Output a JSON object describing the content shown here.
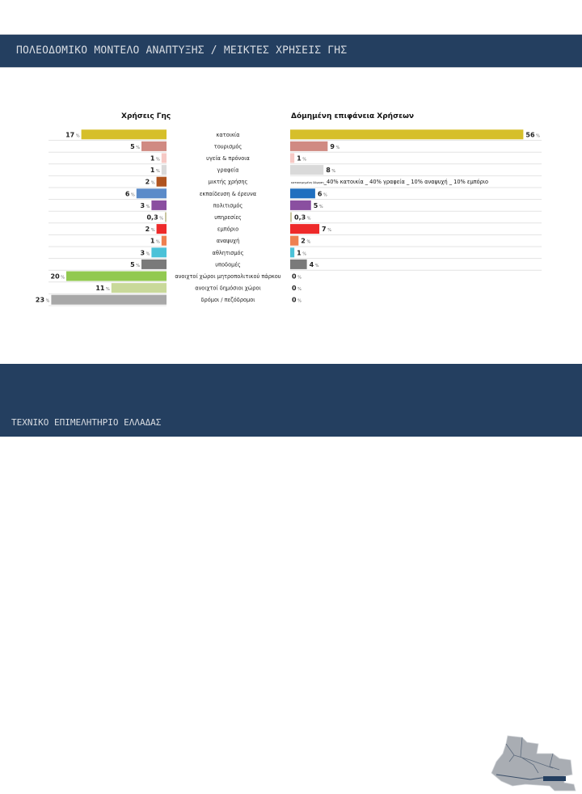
{
  "header": {
    "title": "ΠΟΛΕΟΔΟΜΙΚΟ ΜΟΝΤΕΛΟ ΑΝΑΠΤΥΞΗΣ / ΜΕΙΚΤΕΣ ΧΡΗΣΕΙΣ ΓΗΣ"
  },
  "footer": {
    "title": "ΤΕΧΝΙΚΟ ΕΠΙΜΕΛΗΤΗΡΙΟ ΕΛΛΑΔΑΣ",
    "map_icon": "city-map-outline-icon"
  },
  "chart_data": [
    {
      "type": "bar",
      "orientation": "horizontal",
      "direction": "right-to-left",
      "title": "Χρήσεις Γης",
      "unit": "%",
      "categories": [
        "κατοικία",
        "τουρισμός",
        "υγεία & πρόνοια",
        "γραφεία",
        "μικτής χρήσης",
        "εκπαίδευση & έρευνα",
        "πολιτισμός",
        "υπηρεσίες",
        "εμπόριο",
        "αναψυχή",
        "αθλητισμός",
        "υποδομές",
        "ανοιχτοί χώροι μητροπολιτικού πάρκου",
        "ανοιχτοί δημόσιοι χώροι",
        "δρόμοι / πεζόδρομοι"
      ],
      "values": [
        17,
        5,
        1,
        1,
        2,
        6,
        3,
        0.3,
        2,
        1,
        3,
        5,
        20,
        11,
        23
      ],
      "labels": [
        "17",
        "5",
        "1",
        "1",
        "2",
        "6",
        "3",
        "0,3",
        "2",
        "1",
        "3",
        "5",
        "20",
        "11",
        "23"
      ],
      "colors": [
        "#d6bf2a",
        "#d08a82",
        "#f6c9c5",
        "#d9d9d9",
        "#b0541f",
        "#5b8bc9",
        "#8a4fa0",
        "#c9c5a0",
        "#ee2a2a",
        "#ee8050",
        "#4bc2d8",
        "#7a7a7a",
        "#92c950",
        "#c9d99a",
        "#a8a8a8"
      ]
    },
    {
      "type": "bar",
      "orientation": "horizontal",
      "direction": "left-to-right",
      "title": "Δόμημένη επιφάνεια Χρήσεων",
      "unit": "%",
      "categories": [
        "κατοικία",
        "τουρισμός",
        "υγεία & πρόνοια",
        "γραφεία",
        "μικτής χρήσης",
        "εκπαίδευση & έρευνα",
        "πολιτισμός",
        "υπηρεσίες",
        "εμπόριο",
        "αναψυχή",
        "αθλητισμός",
        "υποδομές",
        "ανοιχτοί χώροι μητροπολιτικού πάρκου",
        "ανοιχτοί δημόσιοι χώροι",
        "δρόμοι / πεζόδρομοι"
      ],
      "values": [
        56,
        9,
        1,
        8,
        null,
        6,
        5,
        0.3,
        7,
        2,
        1,
        4,
        0,
        0,
        0
      ],
      "labels": [
        "56",
        "9",
        "1",
        "8",
        "",
        "6",
        "5",
        "0,3",
        "7",
        "2",
        "1",
        "4",
        "0",
        "0",
        "0"
      ],
      "colors": [
        "#d6bf2a",
        "#d08a82",
        "#f6c9c5",
        "#d9d9d9",
        "#b0541f",
        "#1f6fbf",
        "#8a4fa0",
        "#c9c5a0",
        "#ee2a2a",
        "#ee8050",
        "#4bc2d8",
        "#7a7a7a",
        "#92c950",
        "#c9d99a",
        "#a8a8a8"
      ],
      "mixed_use_note": {
        "prefix": "κατανεμημένη δόμηση",
        "text": "_40% κατοικία _ 40% γραφεία _ 10% αναψυχή _ 10% εμπόριο"
      }
    }
  ]
}
